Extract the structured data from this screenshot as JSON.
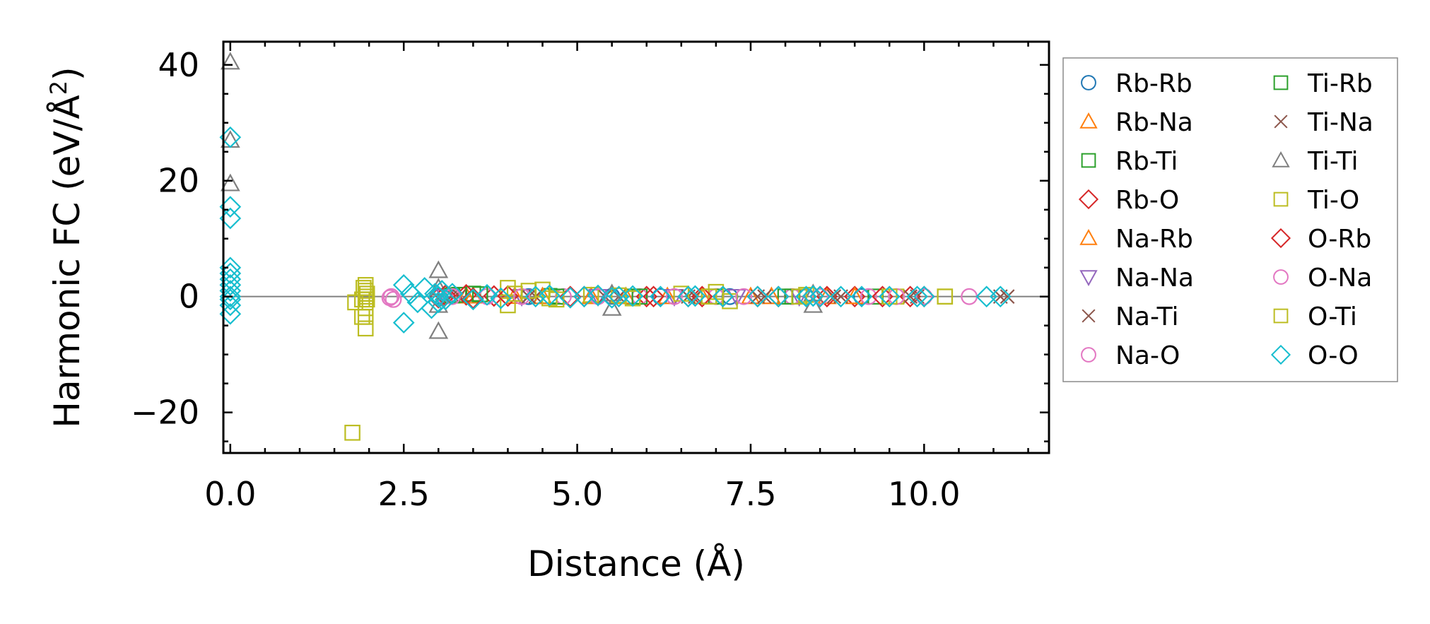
{
  "chart_data": {
    "type": "scatter",
    "title": "",
    "xlabel": "Distance (Å)",
    "ylabel_main": "Harmonic FC (eV/Å",
    "ylabel_sup": "2",
    "ylabel_close": ")",
    "xlim": [
      -0.1,
      11.8
    ],
    "ylim": [
      -27,
      44
    ],
    "xticks": [
      0.0,
      2.5,
      5.0,
      7.5,
      10.0
    ],
    "xtick_labels": [
      "0.0",
      "2.5",
      "5.0",
      "7.5",
      "10.0"
    ],
    "yticks": [
      -20,
      0,
      20,
      40
    ],
    "ytick_labels": [
      "−20",
      "0",
      "20",
      "40"
    ],
    "zero_line": true,
    "legend_position": "outside-right",
    "series": [
      {
        "name": "Rb-Rb",
        "marker": "circle",
        "color": "#1f77b4",
        "x": [
          3.0,
          4.3,
          5.5,
          6.2,
          7.2,
          8.3,
          9.1
        ],
        "y": [
          0.1,
          0.0,
          0.05,
          0.0,
          0.0,
          0.0,
          0.0
        ]
      },
      {
        "name": "Rb-Na",
        "marker": "triangle-up",
        "color": "#ff7f0e",
        "x": [
          3.4,
          4.1,
          5.2,
          6.3,
          7.5,
          8.6
        ],
        "y": [
          0.1,
          0.05,
          0.0,
          0.0,
          0.0,
          0.0
        ]
      },
      {
        "name": "Rb-Ti",
        "marker": "square",
        "color": "#2ca02c",
        "x": [
          3.3,
          3.5,
          4.6,
          5.8,
          6.9,
          8.0,
          9.3
        ],
        "y": [
          0.3,
          0.5,
          0.1,
          0.0,
          0.0,
          0.0,
          0.0
        ]
      },
      {
        "name": "Rb-O",
        "marker": "diamond",
        "color": "#d62728",
        "x": [
          3.0,
          3.4,
          3.8,
          4.9,
          6.0,
          6.6,
          7.1,
          7.9,
          8.6,
          9.0,
          9.8
        ],
        "y": [
          -0.2,
          0.3,
          0.1,
          0.0,
          0.0,
          0.0,
          0.0,
          0.0,
          0.0,
          0.0,
          0.0
        ]
      },
      {
        "name": "Na-Rb",
        "marker": "triangle-up",
        "color": "#ff7f0e",
        "x": [
          3.5,
          4.5,
          5.7,
          6.8,
          7.8,
          9.0
        ],
        "y": [
          0.1,
          0.0,
          0.0,
          0.0,
          0.0,
          0.0
        ]
      },
      {
        "name": "Na-Na",
        "marker": "triangle-down",
        "color": "#9467bd",
        "x": [
          3.1,
          4.2,
          5.3,
          6.4,
          7.3,
          8.2
        ],
        "y": [
          0.0,
          0.0,
          0.0,
          0.0,
          0.0,
          0.0
        ]
      },
      {
        "name": "Na-Ti",
        "marker": "x",
        "color": "#8c564b",
        "x": [
          3.2,
          4.4,
          5.6,
          6.7,
          7.7,
          8.8,
          9.9,
          11.1
        ],
        "y": [
          0.2,
          0.0,
          0.0,
          0.0,
          0.0,
          0.0,
          0.0,
          0.0
        ]
      },
      {
        "name": "Na-O",
        "marker": "circle",
        "color": "#e377c2",
        "x": [
          2.3,
          2.35,
          3.1,
          3.7,
          4.8,
          5.9,
          7.0,
          8.1,
          9.2,
          10.0
        ],
        "y": [
          -0.2,
          -0.5,
          0.1,
          0.0,
          0.0,
          0.0,
          0.0,
          0.0,
          0.0,
          0.0
        ]
      },
      {
        "name": "Ti-Rb",
        "marker": "square",
        "color": "#2ca02c",
        "x": [
          3.2,
          3.6,
          4.7,
          5.9,
          7.0,
          8.1
        ],
        "y": [
          0.2,
          0.4,
          0.0,
          0.0,
          0.0,
          0.0
        ]
      },
      {
        "name": "Ti-Na",
        "marker": "x",
        "color": "#8c564b",
        "x": [
          3.3,
          4.3,
          5.4,
          6.6,
          7.6,
          8.7,
          9.8,
          11.2
        ],
        "y": [
          0.1,
          0.0,
          0.0,
          0.0,
          0.0,
          0.0,
          0.0,
          0.0
        ]
      },
      {
        "name": "Ti-Ti",
        "marker": "triangle-up",
        "color": "#7f7f7f",
        "x": [
          0.0,
          0.0,
          0.0,
          3.0,
          3.0,
          3.0,
          3.0,
          5.5,
          5.5,
          8.4,
          8.4
        ],
        "y": [
          40.5,
          27.0,
          19.5,
          4.5,
          -6.0,
          1.5,
          -1.5,
          -2.0,
          0.5,
          -1.5,
          0.5
        ]
      },
      {
        "name": "Ti-O",
        "marker": "square",
        "color": "#bcbd22",
        "x": [
          1.76,
          1.9,
          1.9,
          1.95,
          1.95,
          1.95,
          1.95,
          1.95,
          1.95,
          1.95,
          4.0,
          4.0,
          4.3,
          4.5,
          4.7,
          5.2,
          5.8,
          6.5,
          7.0,
          7.2,
          8.3,
          9.6,
          10.3
        ],
        "y": [
          -23.5,
          -3.5,
          -0.5,
          2.0,
          1.0,
          0.0,
          -1.0,
          -2.0,
          -3.5,
          -5.5,
          1.5,
          -1.5,
          1.0,
          1.2,
          -0.5,
          0.3,
          -0.3,
          0.5,
          0.8,
          -0.8,
          0.3,
          0.0,
          0.0
        ]
      },
      {
        "name": "O-Rb",
        "marker": "diamond",
        "color": "#d62728",
        "x": [
          3.1,
          3.5,
          4.0,
          5.1,
          6.1,
          6.8,
          7.6,
          8.5,
          9.4,
          10.0
        ],
        "y": [
          0.2,
          -0.3,
          0.1,
          0.0,
          0.0,
          0.0,
          0.0,
          0.0,
          0.0,
          0.0
        ]
      },
      {
        "name": "O-Na",
        "marker": "circle",
        "color": "#e377c2",
        "x": [
          2.32,
          3.2,
          4.2,
          5.3,
          6.4,
          7.4,
          8.5,
          9.6,
          10.65
        ],
        "y": [
          0.0,
          0.0,
          0.0,
          0.0,
          0.0,
          0.0,
          0.0,
          0.0,
          0.0
        ]
      },
      {
        "name": "O-Ti",
        "marker": "square",
        "color": "#bcbd22",
        "x": [
          1.8,
          1.92,
          1.97,
          1.97,
          4.1,
          4.6,
          5.6,
          6.9,
          8.2,
          9.5,
          10.3
        ],
        "y": [
          -1.0,
          1.5,
          0.5,
          -0.5,
          0.5,
          -0.3,
          0.2,
          0.0,
          0.0,
          0.0,
          0.0
        ]
      },
      {
        "name": "O-O",
        "marker": "diamond",
        "color": "#17becf",
        "x": [
          0.0,
          0.0,
          0.0,
          0.0,
          0.0,
          0.0,
          0.0,
          0.0,
          0.0,
          0.0,
          0.0,
          0.0,
          2.5,
          2.5,
          2.6,
          2.7,
          2.8,
          2.9,
          2.95,
          3.0,
          3.0,
          3.05,
          3.1,
          3.2,
          3.5,
          3.7,
          3.9,
          4.4,
          4.6,
          4.9,
          5.1,
          5.3,
          5.5,
          5.6,
          5.8,
          6.2,
          6.6,
          6.7,
          7.1,
          7.6,
          7.9,
          8.3,
          8.4,
          8.5,
          8.8,
          9.1,
          9.5,
          9.9,
          10.0,
          10.9,
          11.1
        ],
        "y": [
          27.5,
          15.5,
          13.5,
          5.0,
          4.0,
          3.0,
          2.0,
          1.0,
          0.0,
          -0.5,
          -1.5,
          -3.0,
          2.0,
          -4.5,
          0.5,
          -1.0,
          1.5,
          -2.0,
          0.5,
          -1.0,
          0.0,
          1.0,
          -0.5,
          0.5,
          -0.5,
          0.3,
          -0.3,
          0.0,
          0.2,
          -0.2,
          0.0,
          0.2,
          -0.2,
          0.0,
          0.1,
          0.0,
          0.0,
          0.1,
          0.0,
          0.0,
          0.0,
          0.0,
          0.1,
          0.0,
          0.0,
          0.0,
          0.0,
          0.0,
          0.0,
          0.0,
          0.0
        ]
      }
    ]
  }
}
